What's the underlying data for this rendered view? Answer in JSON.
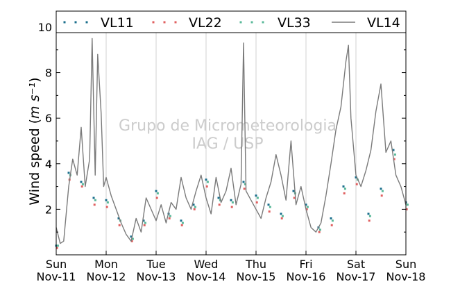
{
  "chart_data": {
    "type": "line",
    "title": "",
    "ylabel": "Wind speed",
    "ylabel_unit": "m s⁻¹",
    "ylim": [
      0,
      10.7
    ],
    "yticks": [
      2,
      4,
      6,
      8,
      10
    ],
    "ytick_labels": [
      "2",
      "4",
      "6",
      "8",
      "10"
    ],
    "xlim": [
      0,
      7
    ],
    "xticks": [
      0,
      1,
      2,
      3,
      4,
      5,
      6,
      7
    ],
    "xtick_labels": [
      [
        "Sun",
        "Nov-11"
      ],
      [
        "Mon",
        "Nov-12"
      ],
      [
        "Tue",
        "Nov-13"
      ],
      [
        "Wed",
        "Nov-14"
      ],
      [
        "Thu",
        "Nov-15"
      ],
      [
        "Fri",
        "Nov-16"
      ],
      [
        "Sat",
        "Nov-17"
      ],
      [
        "Sun",
        "Nov-18"
      ]
    ],
    "grid": "vertical",
    "legend_position": "top",
    "watermark": [
      "Grupo de Micrometeorologia",
      "IAG / USP"
    ],
    "series": [
      {
        "name": "VL11",
        "style": "dots",
        "color": "#1b6f8c",
        "x": [
          0,
          0.25,
          0.5,
          0.75,
          1,
          1.25,
          1.5,
          1.75,
          2,
          2.25,
          2.5,
          2.75,
          3,
          3.25,
          3.5,
          3.75,
          4,
          4.25,
          4.5,
          4.75,
          5,
          5.25,
          5.5,
          5.75,
          6,
          6.25,
          6.5,
          6.75,
          7
        ],
        "y": [
          0.4,
          3.6,
          3.2,
          2.5,
          2.4,
          1.6,
          0.8,
          1.5,
          2.8,
          1.8,
          1.5,
          2.2,
          3.3,
          2.5,
          2.4,
          3.2,
          2.6,
          2.2,
          1.8,
          2.8,
          2.2,
          1.2,
          1.6,
          3.0,
          3.4,
          1.8,
          2.9,
          4.6,
          2.3
        ]
      },
      {
        "name": "VL22",
        "style": "dots",
        "color": "#e06060",
        "x": [
          0,
          0.25,
          0.5,
          0.75,
          1,
          1.25,
          1.5,
          1.75,
          2,
          2.25,
          2.5,
          2.75,
          3,
          3.25,
          3.5,
          3.75,
          4,
          4.25,
          4.5,
          4.75,
          5,
          5.25,
          5.5,
          5.75,
          6,
          6.25,
          6.5,
          6.75,
          7
        ],
        "y": [
          0.3,
          3.3,
          3.0,
          2.2,
          2.1,
          1.3,
          0.6,
          1.3,
          2.5,
          1.6,
          1.3,
          2.0,
          3.0,
          2.2,
          2.1,
          2.9,
          2.3,
          1.9,
          1.6,
          2.5,
          2.0,
          1.0,
          1.3,
          2.7,
          3.1,
          1.5,
          2.6,
          4.2,
          2.0
        ]
      },
      {
        "name": "VL33",
        "style": "dots",
        "color": "#5bb99a",
        "x": [
          0,
          0.25,
          0.5,
          0.75,
          1,
          1.25,
          1.5,
          1.75,
          2,
          2.25,
          2.5,
          2.75,
          3,
          3.25,
          3.5,
          3.75,
          4,
          4.25,
          4.5,
          4.75,
          5,
          5.25,
          5.5,
          5.75,
          6,
          6.25,
          6.5,
          6.75,
          7
        ],
        "y": [
          0.4,
          3.5,
          3.1,
          2.4,
          2.3,
          1.5,
          0.7,
          1.4,
          2.7,
          1.7,
          1.4,
          2.1,
          3.2,
          2.4,
          2.3,
          3.1,
          2.5,
          2.1,
          1.7,
          2.7,
          2.1,
          1.1,
          1.5,
          2.9,
          3.3,
          1.7,
          2.8,
          4.4,
          2.2
        ]
      },
      {
        "name": "VL14",
        "style": "line",
        "color": "#7a7a7a",
        "x": [
          0,
          0.08,
          0.15,
          0.25,
          0.33,
          0.42,
          0.5,
          0.58,
          0.67,
          0.72,
          0.78,
          0.83,
          0.9,
          0.95,
          1,
          1.1,
          1.2,
          1.3,
          1.4,
          1.5,
          1.6,
          1.7,
          1.8,
          1.9,
          2,
          2.1,
          2.2,
          2.3,
          2.4,
          2.5,
          2.6,
          2.7,
          2.8,
          2.9,
          3,
          3.1,
          3.2,
          3.3,
          3.4,
          3.5,
          3.6,
          3.7,
          3.75,
          3.8,
          3.9,
          4,
          4.1,
          4.2,
          4.3,
          4.4,
          4.5,
          4.6,
          4.7,
          4.8,
          4.9,
          5,
          5.1,
          5.2,
          5.3,
          5.4,
          5.5,
          5.6,
          5.7,
          5.8,
          5.85,
          5.9,
          6,
          6.1,
          6.2,
          6.3,
          6.4,
          6.5,
          6.6,
          6.7,
          6.8,
          6.9,
          7
        ],
        "y": [
          1.2,
          0.5,
          0.6,
          3.0,
          4.2,
          3.5,
          5.6,
          3.0,
          4.2,
          9.5,
          3.5,
          8.8,
          6.2,
          3.0,
          3.4,
          2.6,
          2.0,
          1.4,
          0.9,
          0.6,
          1.6,
          1.0,
          2.5,
          2.0,
          1.5,
          2.2,
          1.4,
          2.3,
          2.0,
          3.4,
          2.5,
          2.0,
          2.8,
          3.5,
          2.5,
          1.8,
          3.4,
          2.3,
          2.8,
          3.8,
          2.2,
          3.1,
          9.3,
          2.8,
          2.4,
          2.0,
          1.6,
          2.5,
          3.2,
          4.4,
          3.5,
          2.4,
          5.0,
          2.2,
          3.0,
          2.0,
          1.2,
          1.0,
          1.4,
          2.6,
          4.0,
          5.5,
          6.5,
          8.5,
          9.2,
          6.0,
          3.5,
          3.0,
          3.7,
          4.6,
          6.3,
          7.5,
          4.5,
          5.0,
          3.5,
          3.0,
          2.2
        ]
      }
    ]
  }
}
